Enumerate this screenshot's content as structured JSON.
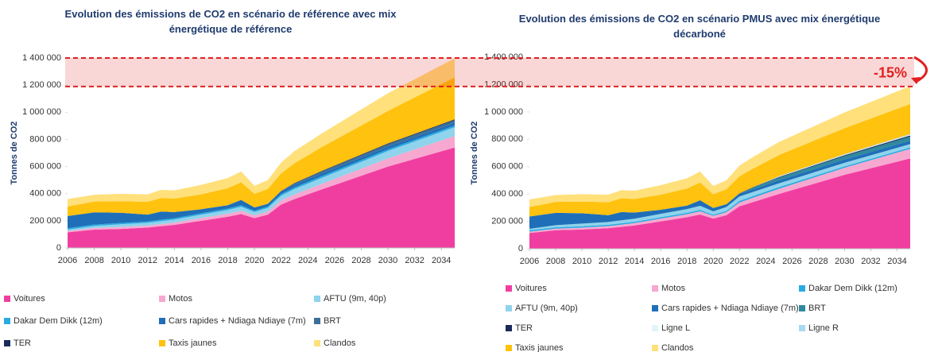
{
  "chart_data": [
    {
      "type": "stacked_area",
      "title": "Evolution des émissions de CO2 en scénario de référence avec mix énergétique de référence",
      "y_label": "Tonnes de CO2",
      "x": [
        2006,
        2008,
        2010,
        2012,
        2013,
        2014,
        2016,
        2018,
        2019,
        2020,
        2021,
        2022,
        2023,
        2025,
        2030,
        2035
      ],
      "xlim": [
        2006,
        2035
      ],
      "xticks": [
        2006,
        2008,
        2010,
        2012,
        2014,
        2016,
        2018,
        2020,
        2022,
        2024,
        2026,
        2028,
        2030,
        2032,
        2034
      ],
      "ylim": [
        0,
        1400000
      ],
      "yticks": [
        0,
        {
          "value": 200000,
          "label": "200 000"
        },
        {
          "value": 400000,
          "label": "400 000"
        },
        {
          "value": 600000,
          "label": "600 000"
        },
        {
          "value": 800000,
          "label": "800 000"
        },
        {
          "value": 1000000,
          "label": "1 000 000"
        },
        {
          "value": 1200000,
          "label": "1 200 000"
        },
        {
          "value": 1400000,
          "label": "1 400 000"
        }
      ],
      "series": [
        {
          "name": "Voitures",
          "color": "#f03ea0",
          "values": [
            115000,
            135000,
            140000,
            150000,
            160000,
            170000,
            200000,
            230000,
            250000,
            220000,
            245000,
            320000,
            360000,
            430000,
            600000,
            740000
          ]
        },
        {
          "name": "Motos",
          "color": "#f7a8d0",
          "values": [
            10000,
            12000,
            14000,
            15000,
            16000,
            17000,
            20000,
            22000,
            24000,
            20000,
            22000,
            30000,
            34000,
            40000,
            60000,
            85000
          ]
        },
        {
          "name": "AFTU (9m, 40p)",
          "color": "#8fd3ec",
          "values": [
            10000,
            15000,
            20000,
            20000,
            22000,
            22000,
            25000,
            28000,
            30000,
            25000,
            28000,
            35000,
            40000,
            45000,
            55000,
            65000
          ]
        },
        {
          "name": "Dakar Dem Dikk (12m)",
          "color": "#29abe2",
          "values": [
            10000,
            10000,
            10000,
            10000,
            10000,
            10000,
            10000,
            10000,
            10000,
            8000,
            10000,
            12000,
            12000,
            12000,
            12000,
            12000
          ]
        },
        {
          "name": "Cars rapides + Ndiaga Ndiaye (7m)",
          "color": "#1f6fb8",
          "values": [
            90000,
            90000,
            75000,
            50000,
            60000,
            45000,
            30000,
            25000,
            40000,
            25000,
            20000,
            20000,
            20000,
            20000,
            20000,
            20000
          ]
        },
        {
          "name": "BRT",
          "color": "#3b6f99",
          "values": [
            0,
            0,
            0,
            0,
            0,
            0,
            0,
            0,
            0,
            0,
            0,
            0,
            10000,
            15000,
            18000,
            20000
          ]
        },
        {
          "name": "TER",
          "color": "#1a2a5a",
          "values": [
            0,
            0,
            0,
            0,
            0,
            0,
            0,
            0,
            0,
            0,
            0,
            3000,
            3000,
            4000,
            5000,
            6000
          ]
        },
        {
          "name": "Taxis jaunes",
          "color": "#ffc20e",
          "values": [
            70000,
            80000,
            85000,
            95000,
            100000,
            100000,
            110000,
            125000,
            130000,
            100000,
            110000,
            130000,
            145000,
            175000,
            240000,
            310000
          ]
        },
        {
          "name": "Clandos",
          "color": "#ffe07a",
          "values": [
            55000,
            50000,
            55000,
            55000,
            60000,
            60000,
            70000,
            75000,
            80000,
            60000,
            65000,
            80000,
            90000,
            100000,
            130000,
            140000
          ]
        }
      ]
    },
    {
      "type": "stacked_area",
      "title": "Evolution des émissions de CO2 en scénario PMUS avec mix énergétique décarboné",
      "y_label": "Tonnes de CO2",
      "x": [
        2006,
        2008,
        2010,
        2012,
        2013,
        2014,
        2016,
        2018,
        2019,
        2020,
        2021,
        2022,
        2023,
        2025,
        2030,
        2035
      ],
      "xlim": [
        2006,
        2035
      ],
      "xticks": [
        2006,
        2008,
        2010,
        2012,
        2014,
        2016,
        2018,
        2020,
        2022,
        2024,
        2026,
        2028,
        2030,
        2032,
        2034
      ],
      "ylim": [
        0,
        1400000
      ],
      "yticks": [
        0,
        {
          "value": 200000,
          "label": "200 000"
        },
        {
          "value": 400000,
          "label": "400 000"
        },
        {
          "value": 600000,
          "label": "600 000"
        },
        {
          "value": 800000,
          "label": "800 000"
        },
        {
          "value": 1000000,
          "label": "1 000 000"
        },
        {
          "value": 1200000,
          "label": "1 200 000"
        },
        {
          "value": 1400000,
          "label": "1 400 000"
        }
      ],
      "series": [
        {
          "name": "Voitures",
          "color": "#f03ea0",
          "values": [
            115000,
            135000,
            140000,
            150000,
            160000,
            170000,
            200000,
            230000,
            250000,
            220000,
            245000,
            310000,
            340000,
            400000,
            540000,
            660000
          ]
        },
        {
          "name": "Motos",
          "color": "#f7a8d0",
          "values": [
            10000,
            12000,
            14000,
            15000,
            16000,
            17000,
            20000,
            22000,
            24000,
            20000,
            22000,
            28000,
            32000,
            38000,
            52000,
            70000
          ]
        },
        {
          "name": "Dakar Dem Dikk (12m)",
          "color": "#29abe2",
          "values": [
            10000,
            10000,
            10000,
            10000,
            10000,
            10000,
            10000,
            10000,
            10000,
            8000,
            10000,
            12000,
            12000,
            12000,
            10000,
            10000
          ]
        },
        {
          "name": "AFTU (9m, 40p)",
          "color": "#8fd3ec",
          "values": [
            10000,
            15000,
            20000,
            20000,
            22000,
            22000,
            25000,
            28000,
            30000,
            25000,
            28000,
            32000,
            30000,
            28000,
            26000,
            25000
          ]
        },
        {
          "name": "Cars rapides + Ndiaga Ndiaye (7m)",
          "color": "#1f6fb8",
          "values": [
            90000,
            90000,
            75000,
            50000,
            60000,
            45000,
            30000,
            25000,
            40000,
            25000,
            20000,
            20000,
            20000,
            22000,
            24000,
            25000
          ]
        },
        {
          "name": "BRT",
          "color": "#2f8a9e",
          "values": [
            0,
            0,
            0,
            0,
            0,
            0,
            0,
            0,
            0,
            0,
            0,
            0,
            12000,
            20000,
            25000,
            30000
          ]
        },
        {
          "name": "TER",
          "color": "#1a2a5a",
          "values": [
            0,
            0,
            0,
            0,
            0,
            0,
            0,
            0,
            0,
            0,
            0,
            3000,
            3000,
            4000,
            6000,
            8000
          ]
        },
        {
          "name": "Ligne L",
          "color": "#e3f4fb",
          "values": [
            0,
            0,
            0,
            0,
            0,
            0,
            0,
            0,
            0,
            0,
            0,
            0,
            0,
            3000,
            4000,
            5000
          ]
        },
        {
          "name": "Ligne R",
          "color": "#a8daf0",
          "values": [
            0,
            0,
            0,
            0,
            0,
            0,
            0,
            0,
            0,
            0,
            0,
            0,
            0,
            3000,
            4000,
            5000
          ]
        },
        {
          "name": "Taxis jaunes",
          "color": "#ffc20e",
          "values": [
            70000,
            80000,
            85000,
            95000,
            100000,
            100000,
            110000,
            125000,
            130000,
            100000,
            110000,
            125000,
            135000,
            155000,
            190000,
            220000
          ]
        },
        {
          "name": "Clandos",
          "color": "#ffe07a",
          "values": [
            55000,
            50000,
            55000,
            55000,
            60000,
            60000,
            70000,
            75000,
            80000,
            60000,
            65000,
            78000,
            85000,
            95000,
            115000,
            130000
          ]
        }
      ]
    }
  ],
  "annotation": {
    "text": "-15%",
    "color": "#e02020",
    "values": [
      1400000,
      1190000
    ]
  }
}
